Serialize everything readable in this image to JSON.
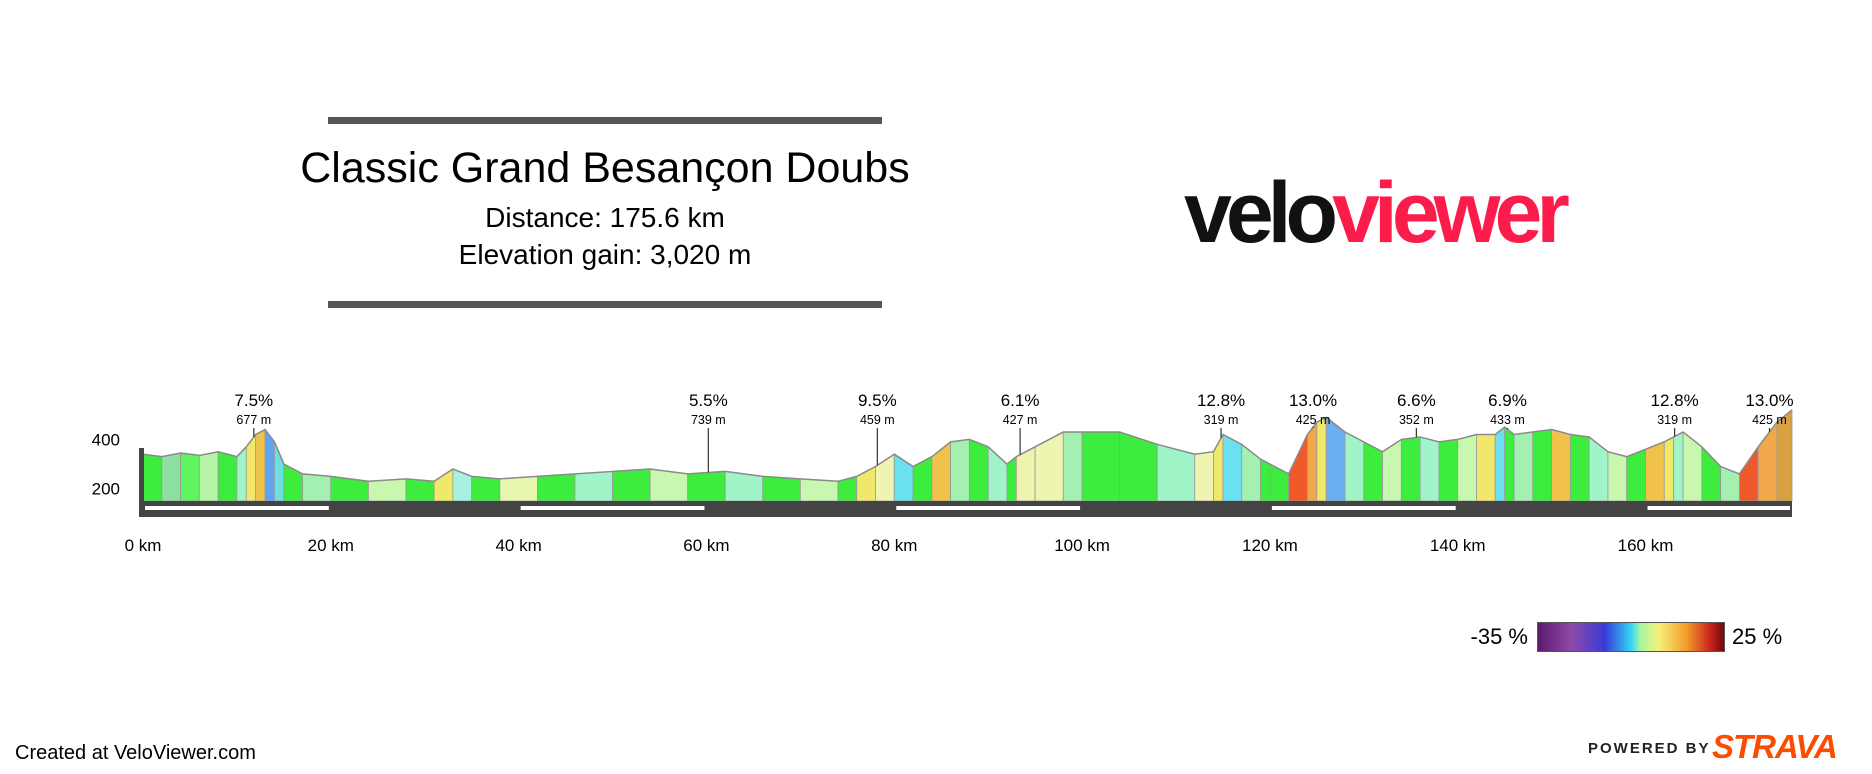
{
  "header": {
    "title": "Classic Grand Besançon Doubs",
    "distance_text": "Distance: 175.6 km",
    "elevation_text": "Elevation gain: 3,020 m"
  },
  "logo": {
    "part1": "velo",
    "part2": "viewer",
    "colors": {
      "part1": "#111111",
      "part2": "#fc1c4c"
    }
  },
  "chart_data": {
    "type": "area",
    "title": "Classic Grand Besançon Doubs",
    "xlabel": "",
    "ylabel": "",
    "x_unit": "km",
    "x_ticks": [
      "0 km",
      "20 km",
      "40 km",
      "60 km",
      "80 km",
      "100 km",
      "120 km",
      "140 km",
      "160 km"
    ],
    "x_tick_values": [
      0,
      20,
      40,
      60,
      80,
      100,
      120,
      140,
      160
    ],
    "y_ticks": [
      "400",
      "200"
    ],
    "y_tick_values": [
      400,
      200
    ],
    "xlim": [
      0,
      175.6
    ],
    "ylim": [
      150,
      560
    ],
    "profile": {
      "x": [
        0,
        2,
        4,
        6,
        8,
        10,
        11,
        12,
        13,
        14,
        15,
        17,
        20,
        24,
        28,
        31,
        33,
        35,
        38,
        42,
        46,
        50,
        54,
        58,
        62,
        66,
        70,
        74,
        76,
        78,
        80,
        82,
        84,
        86,
        88,
        90,
        92,
        93,
        95,
        98,
        100,
        104,
        108,
        112,
        114,
        115,
        117,
        119,
        120,
        122,
        124,
        125,
        126,
        128,
        130,
        132,
        134,
        136,
        138,
        140,
        142,
        144,
        145,
        146,
        148,
        150,
        152,
        154,
        156,
        158,
        160,
        162,
        163,
        164,
        166,
        168,
        170,
        172,
        174,
        175.6
      ],
      "y": [
        340,
        330,
        345,
        335,
        350,
        330,
        370,
        420,
        440,
        390,
        300,
        260,
        250,
        230,
        240,
        230,
        280,
        250,
        240,
        250,
        260,
        270,
        280,
        260,
        270,
        250,
        240,
        230,
        250,
        290,
        340,
        290,
        330,
        390,
        400,
        370,
        300,
        330,
        370,
        430,
        430,
        430,
        380,
        340,
        350,
        420,
        380,
        320,
        300,
        260,
        420,
        470,
        490,
        430,
        390,
        350,
        400,
        410,
        390,
        400,
        420,
        420,
        450,
        420,
        430,
        440,
        420,
        410,
        350,
        330,
        360,
        390,
        410,
        430,
        370,
        290,
        260,
        370,
        470,
        520
      ],
      "colors": [
        "#3ded3d",
        "#8ee0a0",
        "#5ef55e",
        "#b7f5a8",
        "#3ded3d",
        "#9ff5c8",
        "#f0e86a",
        "#f1c24a",
        "#5fa4f0",
        "#6ae0e0",
        "#3ded3d",
        "#a4f0b0",
        "#3ded3d",
        "#c8f7b0",
        "#3ded3d",
        "#f0e86a",
        "#a8f0e0",
        "#3ded3d",
        "#e6f7b0",
        "#3ded3d",
        "#9ff5c8",
        "#3ded3d",
        "#c8f7b0",
        "#3ded3d",
        "#9ff5c8",
        "#3ded3d",
        "#c8f7b0",
        "#3ded3d",
        "#f0e86a",
        "#edf5b0",
        "#6ae0f0",
        "#3ded3d",
        "#f1c24a",
        "#a4f0b0",
        "#3ded3d",
        "#9ff5c8",
        "#3ded3d",
        "#f0f2b0",
        "#edf5b0",
        "#a4f0b0",
        "#3ded3d",
        "#3ded3d",
        "#9ff5c8",
        "#edf5b0",
        "#f0e86a",
        "#6ae0f0",
        "#a4f0b0",
        "#3ded3d",
        "#3ded3d",
        "#f05a2a",
        "#f1a84a",
        "#f0e86a",
        "#6ab0f0",
        "#9ff5c8",
        "#3ded3d",
        "#c8f7b0",
        "#3ded3d",
        "#9ff5c8",
        "#3ded3d",
        "#c8f7b0",
        "#f0e86a",
        "#6ae0f0",
        "#3ded3d",
        "#a4f0b0",
        "#3ded3d",
        "#f1c24a",
        "#3ded3d",
        "#9ff5c8",
        "#c8f7b0",
        "#3ded3d",
        "#f1c24a",
        "#f0e86a",
        "#9ff5c8",
        "#c8f7b0",
        "#3ded3d",
        "#a4f0b0",
        "#f05a2a",
        "#f1a84a",
        "#d8a040"
      ]
    },
    "climb_markers": [
      {
        "x": 11.8,
        "grade": "7.5%",
        "dist": "677 m"
      },
      {
        "x": 60.2,
        "grade": "5.5%",
        "dist": "739 m"
      },
      {
        "x": 78.2,
        "grade": "9.5%",
        "dist": "459 m"
      },
      {
        "x": 93.4,
        "grade": "6.1%",
        "dist": "427 m"
      },
      {
        "x": 114.8,
        "grade": "12.8%",
        "dist": "319 m"
      },
      {
        "x": 124.6,
        "grade": "13.0%",
        "dist": "425 m"
      },
      {
        "x": 135.6,
        "grade": "6.6%",
        "dist": "352 m"
      },
      {
        "x": 145.3,
        "grade": "6.9%",
        "dist": "433 m"
      },
      {
        "x": 163.1,
        "grade": "12.8%",
        "dist": "319 m"
      },
      {
        "x": 173.2,
        "grade": "13.0%",
        "dist": "425 m"
      }
    ]
  },
  "legend": {
    "min_label": "-35 %",
    "max_label": "25 %"
  },
  "footer": {
    "created": "Created at VeloViewer.com",
    "powered": "POWERED BY",
    "brand": "STRAVA",
    "brand_color": "#fc4c02"
  }
}
